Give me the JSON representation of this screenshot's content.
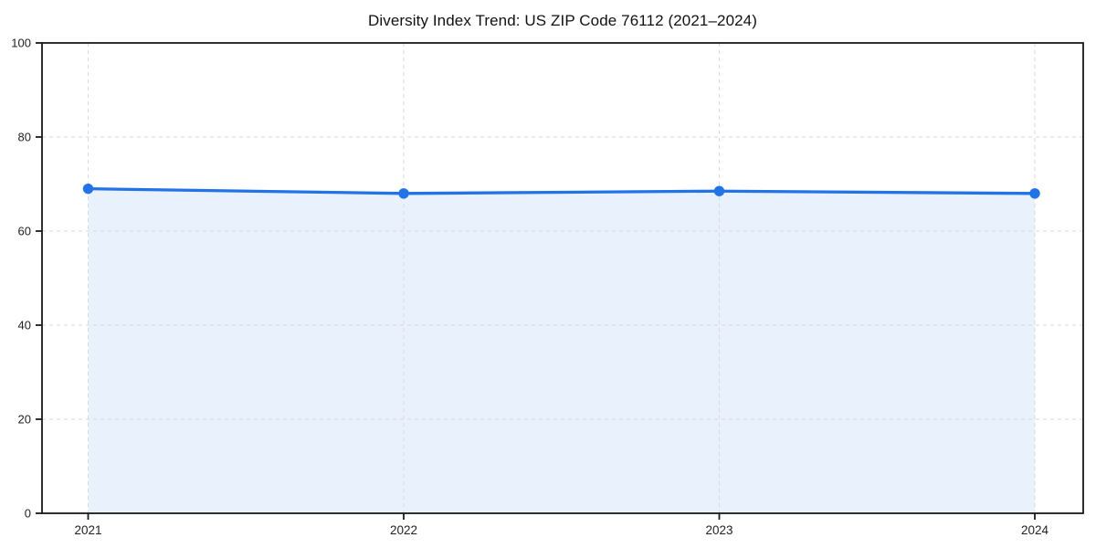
{
  "page": {
    "background": "#ffffff"
  },
  "chart_data": {
    "type": "area",
    "title": "Diversity Index Trend: US ZIP Code 76112 (2021–2024)",
    "x_labels": [
      "2021",
      "2022",
      "2023",
      "2024"
    ],
    "values": [
      69,
      68,
      68.5,
      68
    ],
    "ylim": [
      0,
      100
    ],
    "yticks": [
      0,
      20,
      40,
      60,
      80,
      100
    ],
    "xlabel": "",
    "ylabel": "",
    "grid": true,
    "grid_style": "dashed",
    "legend_position": "none",
    "colors": {
      "line": "#2273e6",
      "marker": "#2273e6",
      "area_fill": "#e9f1fc",
      "grid": "#d9d9d9",
      "axis": "#1a1a1a",
      "tick_label": "#222222",
      "title": "#111111",
      "background": "#ffffff"
    }
  }
}
